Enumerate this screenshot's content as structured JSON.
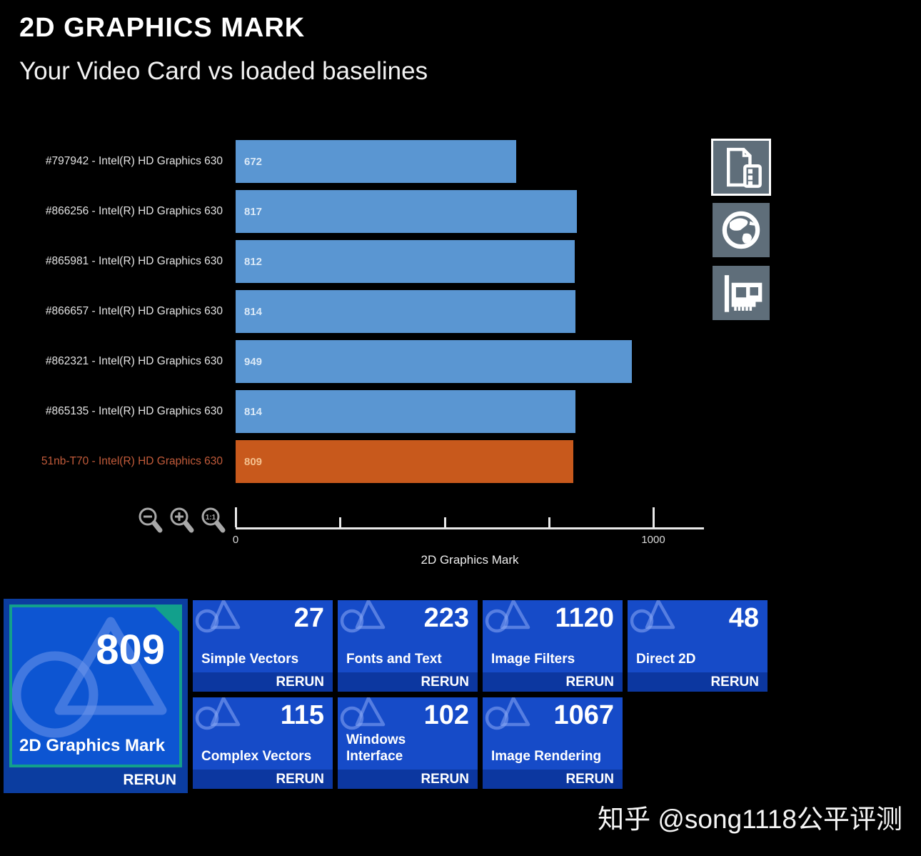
{
  "header": {
    "title": "2D GRAPHICS MARK",
    "subtitle": "Your Video Card vs loaded baselines"
  },
  "chart_data": {
    "type": "bar",
    "orientation": "horizontal",
    "title": "2D GRAPHICS MARK — Your Video Card vs loaded baselines",
    "categories": [
      "#797942 - Intel(R) HD Graphics 630",
      "#866256 - Intel(R) HD Graphics 630",
      "#865981 - Intel(R) HD Graphics 630",
      "#866657 - Intel(R) HD Graphics 630",
      "#862321 - Intel(R) HD Graphics 630",
      "#865135 - Intel(R) HD Graphics 630",
      "51nb-T70 - Intel(R) HD Graphics 630"
    ],
    "values": [
      672,
      817,
      812,
      814,
      949,
      814,
      809
    ],
    "highlight_index": 6,
    "xlabel": "2D Graphics Mark",
    "xlim": [
      0,
      1120
    ],
    "major_ticks": [
      0,
      1000
    ],
    "minor_ticks": [
      250,
      500,
      750
    ],
    "grid": false,
    "legend": "none",
    "colors": {
      "baseline_bar": "#5a96d2",
      "your_bar": "#c8591c",
      "baseline_label": "#e4e4e4",
      "your_label": "#c25b3a"
    }
  },
  "zoom_controls": {
    "icons": [
      "magnifier-minus-icon",
      "magnifier-plus-icon",
      "magnifier-1to1-icon"
    ]
  },
  "side_buttons": {
    "icons": [
      "report-document-icon",
      "globe-icon",
      "video-card-icon"
    ],
    "active_index": 0,
    "background": "#5f6e7a"
  },
  "summary": {
    "main_tile": {
      "value": "809",
      "label": "2D Graphics Mark",
      "rerun": "RERUN",
      "accent": "#12a08c",
      "face_color": "#0d55d2"
    },
    "tiles": [
      {
        "value": "27",
        "label": "Simple Vectors",
        "rerun": "RERUN"
      },
      {
        "value": "223",
        "label": "Fonts and Text",
        "rerun": "RERUN"
      },
      {
        "value": "1120",
        "label": "Image Filters",
        "rerun": "RERUN"
      },
      {
        "value": "48",
        "label": "Direct 2D",
        "rerun": "RERUN"
      },
      {
        "value": "115",
        "label": "Complex Vectors",
        "rerun": "RERUN"
      },
      {
        "value": "102",
        "label": "Windows\nInterface",
        "rerun": "RERUN"
      },
      {
        "value": "1067",
        "label": "Image Rendering",
        "rerun": "RERUN"
      }
    ],
    "tile_color": "#164bc8",
    "rerun_strip_color": "#0c37a0"
  },
  "watermark": "知乎 @song1118公平评测"
}
